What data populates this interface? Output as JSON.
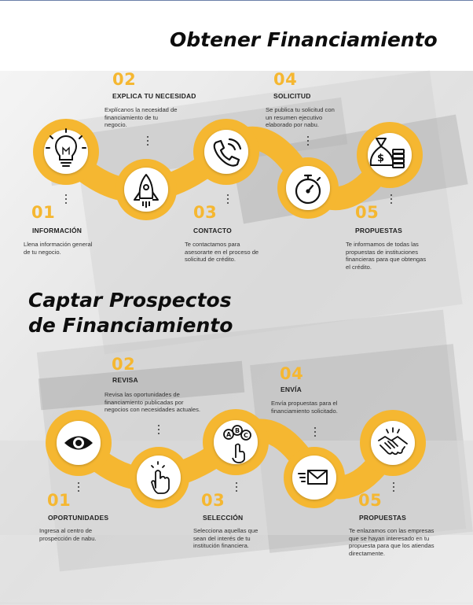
{
  "colors": {
    "accent": "#f5b731",
    "text": "#222222",
    "background": "#ffffff"
  },
  "section1": {
    "title": "Obtener Financiamiento",
    "steps": [
      {
        "num": "01",
        "label": "INFORMACIÓN",
        "desc": [
          "Llena información general",
          "de tu negocio."
        ],
        "icon": "lightbulb-icon"
      },
      {
        "num": "02",
        "label": "EXPLICA TU NECESIDAD",
        "desc": [
          "Explícanos la necesidad de",
          "financiamiento de tu",
          "negocio."
        ],
        "icon": "rocket-icon"
      },
      {
        "num": "03",
        "label": "CONTACTO",
        "desc": [
          "Te contactamos para",
          "asesorarte en el proceso de",
          "solicitud de crédito."
        ],
        "icon": "phone-icon"
      },
      {
        "num": "04",
        "label": "SOLICITUD",
        "desc": [
          "Se publica tu solicitud con",
          "un resumen ejecutivo",
          "elaborado por nabu."
        ],
        "icon": "stopwatch-icon"
      },
      {
        "num": "05",
        "label": "PROPUESTAS",
        "desc": [
          "Te informamos de todas las",
          "propuestas de instituciones",
          "financieras para que obtengas",
          "el crédito."
        ],
        "icon": "money-bag-icon"
      }
    ]
  },
  "section2": {
    "title_line1": "Captar Prospectos",
    "title_line2": "de Financiamiento",
    "steps": [
      {
        "num": "01",
        "label": "OPORTUNIDADES",
        "desc": [
          "Ingresa al centro de",
          "prospección de nabu."
        ],
        "icon": "eye-icon"
      },
      {
        "num": "02",
        "label": "REVISA",
        "desc": [
          "Revisa las oportunidades de",
          "financiamiento publicadas por",
          "negocios con necesidades actuales."
        ],
        "icon": "pointer-hand-icon"
      },
      {
        "num": "03",
        "label": "SELECCIÓN",
        "desc": [
          "Selecciona aquellas que",
          "sean del interés de tu",
          "institución financiera."
        ],
        "icon": "abc-choice-icon"
      },
      {
        "num": "04",
        "label": "ENVÍA",
        "desc": [
          "Envía propuestas para el",
          "financiamiento solicitado."
        ],
        "icon": "envelope-icon"
      },
      {
        "num": "05",
        "label": "PROPUESTAS",
        "desc": [
          "Te enlazamos con las empresas",
          "que se hayan interesado en tu",
          "propuesta para que los atiendas",
          "directamente."
        ],
        "icon": "handshake-icon"
      }
    ]
  }
}
